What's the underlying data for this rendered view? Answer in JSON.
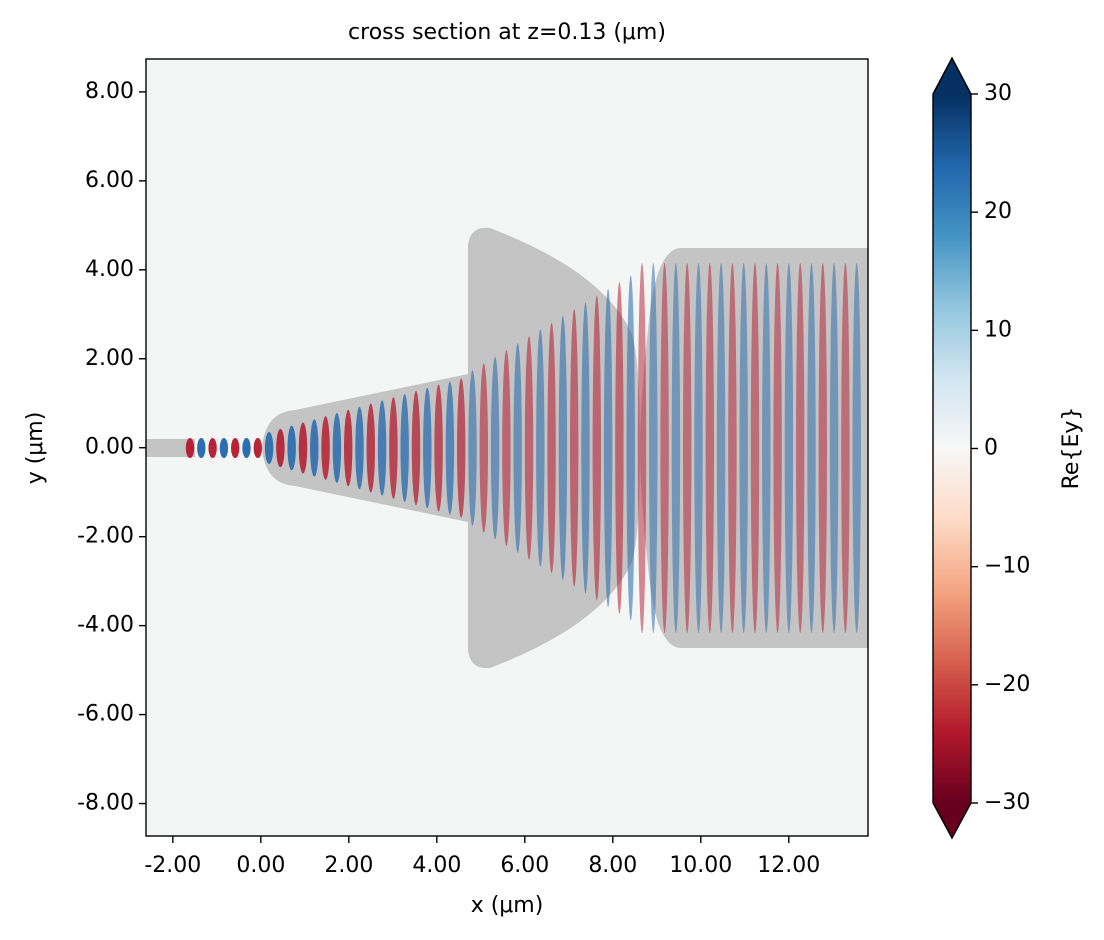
{
  "chart_data": {
    "type": "field",
    "title": "cross section at z=0.13 (μm)",
    "x_label": "x (μm)",
    "y_label": "y (μm)",
    "xlim": [
      -2.61,
      13.8
    ],
    "ylim": [
      -8.73,
      8.74
    ],
    "xticks": [
      {
        "value": -2,
        "label": "-2.00"
      },
      {
        "value": 0,
        "label": "0.00"
      },
      {
        "value": 2,
        "label": "2.00"
      },
      {
        "value": 4,
        "label": "4.00"
      },
      {
        "value": 6,
        "label": "6.00"
      },
      {
        "value": 8,
        "label": "8.00"
      },
      {
        "value": 10,
        "label": "10.00"
      },
      {
        "value": 12,
        "label": "12.00"
      }
    ],
    "yticks": [
      {
        "value": 8,
        "label": "8.00"
      },
      {
        "value": 6,
        "label": "6.00"
      },
      {
        "value": 4,
        "label": "4.00"
      },
      {
        "value": 2,
        "label": "2.00"
      },
      {
        "value": 0,
        "label": "0.00"
      },
      {
        "value": -2,
        "label": "-2.00"
      },
      {
        "value": -4,
        "label": "-4.00"
      },
      {
        "value": -6,
        "label": "-6.00"
      },
      {
        "value": -8,
        "label": "-8.00"
      }
    ],
    "colorbar": {
      "label": "Re{Ey}",
      "lim": [
        -30,
        30
      ],
      "ticks": [
        30,
        20,
        10,
        0,
        {
          "value": -10,
          "label": "−10"
        },
        {
          "value": -20,
          "label": "−20"
        },
        {
          "value": -30,
          "label": "−30"
        }
      ],
      "colors": [
        "#67001f",
        "#b2182b",
        "#d6604d",
        "#f4a582",
        "#fddbc7",
        "#f7f7f7",
        "#d1e5f0",
        "#92c5de",
        "#4393c3",
        "#2166ac",
        "#053061"
      ]
    }
  }
}
